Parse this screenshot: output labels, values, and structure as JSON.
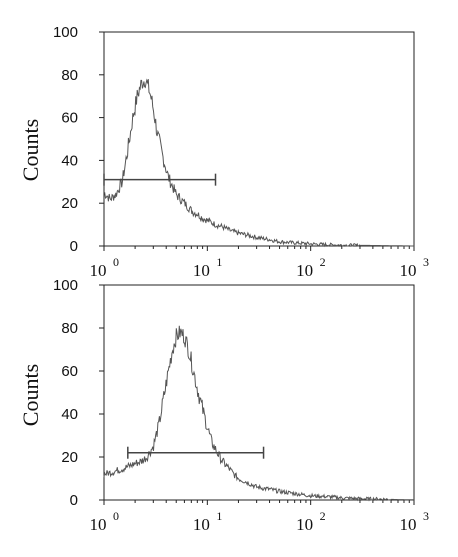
{
  "chart_data": [
    {
      "type": "line",
      "title": "",
      "xlabel": "",
      "ylabel": "Counts",
      "xscale": "log",
      "xlim": [
        1,
        1000
      ],
      "ylim": [
        0,
        100
      ],
      "yticks": [
        0,
        20,
        40,
        60,
        80,
        100
      ],
      "xticks": [
        {
          "base": "10",
          "exp": "0"
        },
        {
          "base": "10",
          "exp": "1"
        },
        {
          "base": "10",
          "exp": "2"
        },
        {
          "base": "10",
          "exp": "3"
        }
      ],
      "grid": false,
      "line_color": "#555555",
      "series": [
        {
          "x": [
            1.0,
            1.15,
            1.3,
            1.5,
            1.7,
            1.9,
            2.1,
            2.3,
            2.5,
            2.7,
            2.9,
            3.1,
            3.3,
            3.6,
            3.9,
            4.2,
            4.6,
            5.0,
            5.5,
            6.0,
            6.6,
            7.2,
            8.0,
            9.0,
            10,
            12,
            14,
            17,
            20,
            25,
            30,
            40,
            50,
            70,
            100,
            150,
            200,
            300,
            500,
            700,
            1000
          ],
          "y": [
            25,
            22,
            24,
            30,
            45,
            60,
            70,
            76,
            78,
            74,
            68,
            60,
            52,
            44,
            38,
            32,
            28,
            24,
            22,
            20,
            18,
            16,
            15,
            13,
            12,
            10,
            9,
            7,
            6,
            5,
            4,
            3,
            2,
            1.5,
            1,
            0.6,
            0.4,
            0.3,
            0.2,
            0.1,
            0
          ]
        }
      ],
      "gate": {
        "start": 1.0,
        "end": 12,
        "level": 31
      }
    },
    {
      "type": "line",
      "title": "",
      "xlabel": "",
      "ylabel": "Counts",
      "xscale": "log",
      "xlim": [
        1,
        1000
      ],
      "ylim": [
        0,
        100
      ],
      "yticks": [
        0,
        20,
        40,
        60,
        80,
        100
      ],
      "xticks": [
        {
          "base": "10",
          "exp": "0"
        },
        {
          "base": "10",
          "exp": "1"
        },
        {
          "base": "10",
          "exp": "2"
        },
        {
          "base": "10",
          "exp": "3"
        }
      ],
      "grid": false,
      "line_color": "#555555",
      "series": [
        {
          "x": [
            1.0,
            1.2,
            1.4,
            1.6,
            1.8,
            2.0,
            2.3,
            2.6,
            3.0,
            3.4,
            3.8,
            4.2,
            4.6,
            5.0,
            5.5,
            6.0,
            6.6,
            7.2,
            8.0,
            9.0,
            10,
            11,
            12.5,
            14,
            16,
            18,
            20,
            25,
            30,
            40,
            50,
            70,
            100,
            150,
            200,
            300,
            500,
            700,
            1000
          ],
          "y": [
            12,
            13,
            14,
            15,
            16,
            17,
            18,
            20,
            25,
            35,
            48,
            60,
            70,
            76,
            78,
            76,
            70,
            62,
            52,
            42,
            34,
            27,
            22,
            18,
            15,
            12,
            10,
            8,
            6,
            5,
            4,
            3,
            2,
            1.5,
            1,
            0.6,
            0.4,
            0.2,
            0.1
          ]
        }
      ],
      "gate": {
        "start": 1.7,
        "end": 35,
        "level": 22
      }
    }
  ]
}
